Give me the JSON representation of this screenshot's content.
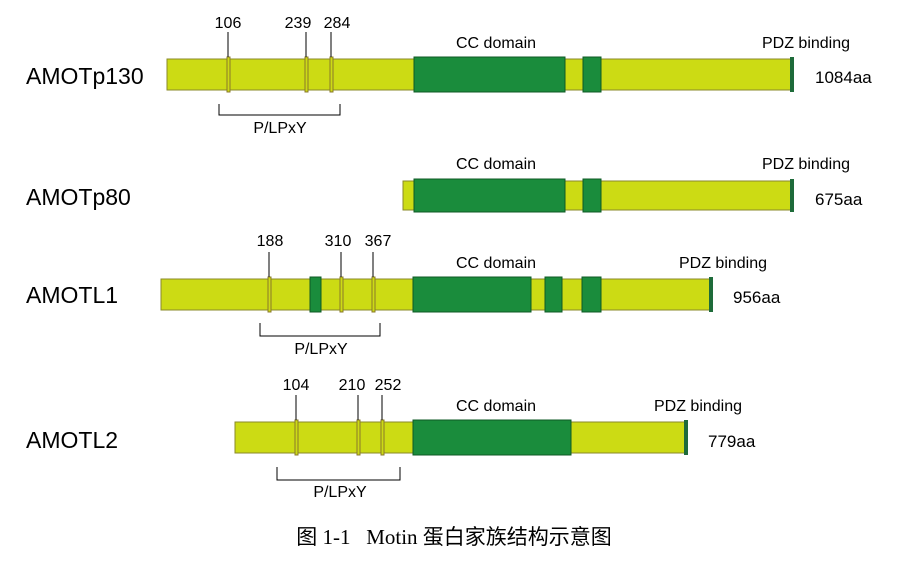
{
  "colors": {
    "body": "#ccdb14",
    "body_stroke": "#8a8a2a",
    "domain": "#1a8c3c",
    "domain_stroke": "#0f5a25",
    "site": "#ccdb14",
    "site_stroke": "#8a7a2a",
    "end_mark": "#1e6b3a"
  },
  "labels": {
    "cc_domain": "CC domain",
    "pdz_binding": "PDZ binding",
    "motif": "P/LPxY"
  },
  "proteins": [
    {
      "name": "AMOTp130",
      "length": "1084aa",
      "sites": [
        "106",
        "239",
        "284"
      ]
    },
    {
      "name": "AMOTp80",
      "length": "675aa",
      "sites": []
    },
    {
      "name": "AMOTL1",
      "length": "956aa",
      "sites": [
        "188",
        "310",
        "367"
      ]
    },
    {
      "name": "AMOTL2",
      "length": "779aa",
      "sites": [
        "104",
        "210",
        "252"
      ]
    }
  ],
  "caption": "图 1-1   Motin 蛋白家族结构示意图"
}
